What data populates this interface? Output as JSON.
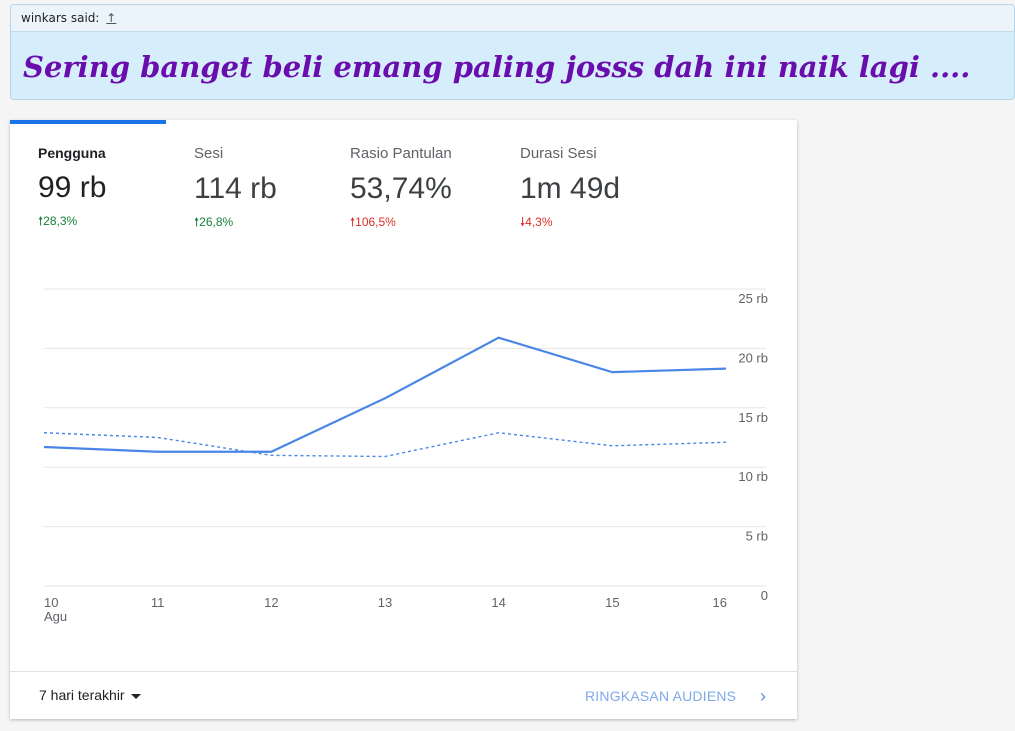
{
  "quote": {
    "author": "winkars said:",
    "link_glyph": "↑",
    "text": "Sering banget beli emang paling josss dah ini naik lagi ...."
  },
  "metrics": [
    {
      "label": "Pengguna",
      "value": "99 rb",
      "change": "28,3%",
      "direction": "up",
      "color": "#188038"
    },
    {
      "label": "Sesi",
      "value": "114 rb",
      "change": "26,8%",
      "direction": "up",
      "color": "#188038"
    },
    {
      "label": "Rasio Pantulan",
      "value": "53,74%",
      "change": "106,5%",
      "direction": "up",
      "color": "#d93025"
    },
    {
      "label": "Durasi Sesi",
      "value": "1m 49d",
      "change": "4,3%",
      "direction": "down",
      "color": "#d93025"
    }
  ],
  "chart_data": {
    "type": "line",
    "x": [
      "10",
      "11",
      "12",
      "13",
      "14",
      "15",
      "16"
    ],
    "x_sublabel": "Agu",
    "y_ticks": [
      "25 rb",
      "20 rb",
      "15 rb",
      "10 rb",
      "5 rb",
      "0"
    ],
    "ylim": [
      0,
      25000
    ],
    "grid": true,
    "series": [
      {
        "style": "solid",
        "color": "#4a86e8",
        "values": [
          11700,
          11300,
          11300,
          15800,
          20900,
          18000,
          18300
        ]
      },
      {
        "style": "dashed",
        "color": "#4a86e8",
        "values": [
          12900,
          12500,
          11000,
          10900,
          12900,
          11800,
          12100
        ]
      }
    ]
  },
  "footer": {
    "range_label": "7 hari terakhir",
    "link_label": "RINGKASAN AUDIENS",
    "chevron": "›"
  }
}
